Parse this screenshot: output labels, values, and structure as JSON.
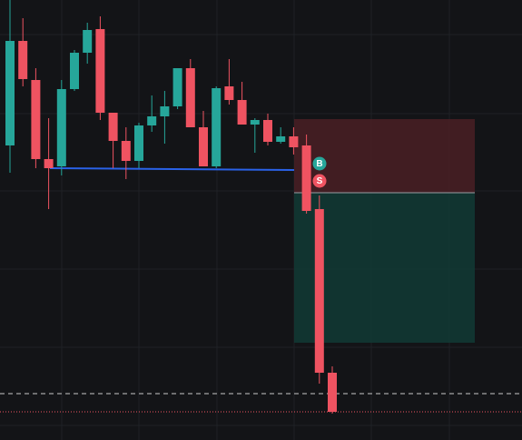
{
  "chart_data": {
    "type": "candlestick",
    "open": [
      324,
      439,
      396,
      309,
      301,
      386,
      426,
      452,
      360,
      329,
      307,
      346,
      356,
      367,
      409,
      344,
      301,
      389,
      374,
      347,
      352,
      328,
      334,
      324,
      254,
      74
    ],
    "high": [
      484,
      464,
      409,
      354,
      396,
      429,
      459,
      466,
      360,
      344,
      349,
      379,
      384,
      409,
      419,
      362,
      389,
      419,
      394,
      354,
      359,
      344,
      344,
      336,
      269,
      81
    ],
    "low": [
      294,
      389,
      299,
      254,
      291,
      384,
      414,
      352,
      299,
      287,
      299,
      339,
      326,
      364,
      344,
      301,
      299,
      369,
      347,
      316,
      324,
      326,
      314,
      249,
      62,
      29
    ],
    "close": [
      439,
      397,
      309,
      299,
      386,
      426,
      451,
      360,
      329,
      307,
      346,
      356,
      367,
      409,
      344,
      301,
      387,
      374,
      347,
      352,
      328,
      334,
      322,
      252,
      74,
      31
    ],
    "up_color": "#26a69a",
    "down_color": "#ef5361",
    "ylim": [
      0,
      484
    ],
    "markers": [
      {
        "label": "B",
        "color": "#26a69a"
      },
      {
        "label": "S",
        "color": "#ef5361"
      }
    ]
  }
}
